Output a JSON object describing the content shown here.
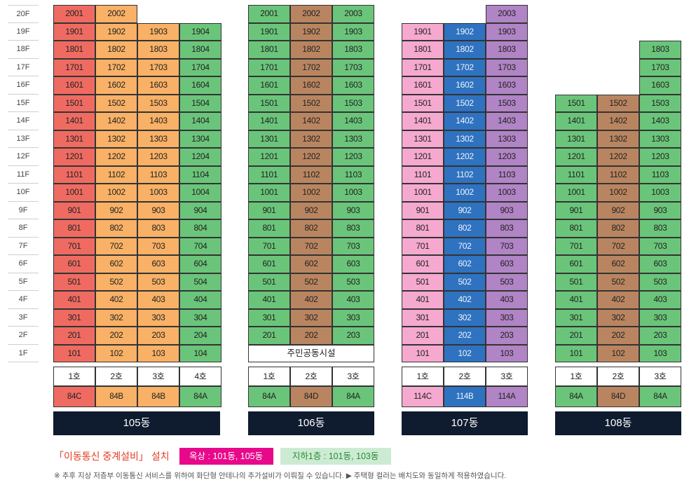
{
  "floor_labels": [
    "20F",
    "19F",
    "18F",
    "17F",
    "16F",
    "15F",
    "14F",
    "13F",
    "12F",
    "11F",
    "10F",
    "9F",
    "8F",
    "7F",
    "6F",
    "5F",
    "4F",
    "3F",
    "2F",
    "1F"
  ],
  "buildings": [
    {
      "name": "105동",
      "lines": [
        {
          "color": "#ef6b62",
          "hex_class": "c-red",
          "top_floor": 20,
          "bottom_floor": 1,
          "line": "01",
          "ho": "1호",
          "type": "84C"
        },
        {
          "color": "#f8b166",
          "hex_class": "c-orange",
          "top_floor": 20,
          "bottom_floor": 1,
          "line": "02",
          "ho": "2호",
          "type": "84B"
        },
        {
          "color": "#f8b166",
          "hex_class": "c-orange",
          "top_floor": 19,
          "bottom_floor": 1,
          "line": "03",
          "ho": "3호",
          "type": "84B"
        },
        {
          "color": "#6ac57a",
          "hex_class": "c-green",
          "top_floor": 19,
          "bottom_floor": 1,
          "line": "04",
          "ho": "4호",
          "type": "84A"
        }
      ]
    },
    {
      "name": "106동",
      "facility": "주민공동시설",
      "lines": [
        {
          "color": "#6ac57a",
          "hex_class": "c-green",
          "top_floor": 20,
          "bottom_floor": 2,
          "line": "01",
          "ho": "1호",
          "type": "84A"
        },
        {
          "color": "#b98560",
          "hex_class": "c-brown",
          "top_floor": 20,
          "bottom_floor": 2,
          "line": "02",
          "ho": "2호",
          "type": "84D"
        },
        {
          "color": "#6ac57a",
          "hex_class": "c-green",
          "top_floor": 20,
          "bottom_floor": 2,
          "line": "03",
          "ho": "3호",
          "type": "84A"
        }
      ]
    },
    {
      "name": "107동",
      "lines": [
        {
          "color": "#f5a9cf",
          "hex_class": "c-pink",
          "top_floor": 19,
          "bottom_floor": 1,
          "line": "01",
          "ho": "1호",
          "type": "114C"
        },
        {
          "color": "#2f72c0",
          "hex_class": "c-blue",
          "top_floor": 19,
          "bottom_floor": 1,
          "line": "02",
          "ho": "2호",
          "type": "114B"
        },
        {
          "color": "#b084c5",
          "hex_class": "c-purple",
          "top_floor": 20,
          "bottom_floor": 1,
          "line": "03",
          "ho": "3호",
          "type": "114A"
        }
      ]
    },
    {
      "name": "108동",
      "lines": [
        {
          "color": "#6ac57a",
          "hex_class": "c-green",
          "top_floor": 15,
          "bottom_floor": 1,
          "line": "01",
          "ho": "1호",
          "type": "84A"
        },
        {
          "color": "#b98560",
          "hex_class": "c-brown",
          "top_floor": 15,
          "bottom_floor": 1,
          "line": "02",
          "ho": "2호",
          "type": "84D"
        },
        {
          "color": "#6ac57a",
          "hex_class": "c-green",
          "top_floor": 18,
          "bottom_floor": 1,
          "line": "03",
          "ho": "3호",
          "type": "84A"
        }
      ]
    }
  ],
  "legend": {
    "title": "「이동통신 중계설비」 설치",
    "roof": "옥상 : 101동, 105동",
    "basement": "지하1층 : 101동, 103동",
    "roof_color": "#e8088a",
    "basement_color": "#cdebd2"
  },
  "note": "※ 추후 지상 저층부 이동통신 서비스를 위하여 화단형 안테나의 추가설비가 이뤄질 수 있습니다. ▶ 주택형 컬러는 배치도와 동일하게 적용하였습니다."
}
